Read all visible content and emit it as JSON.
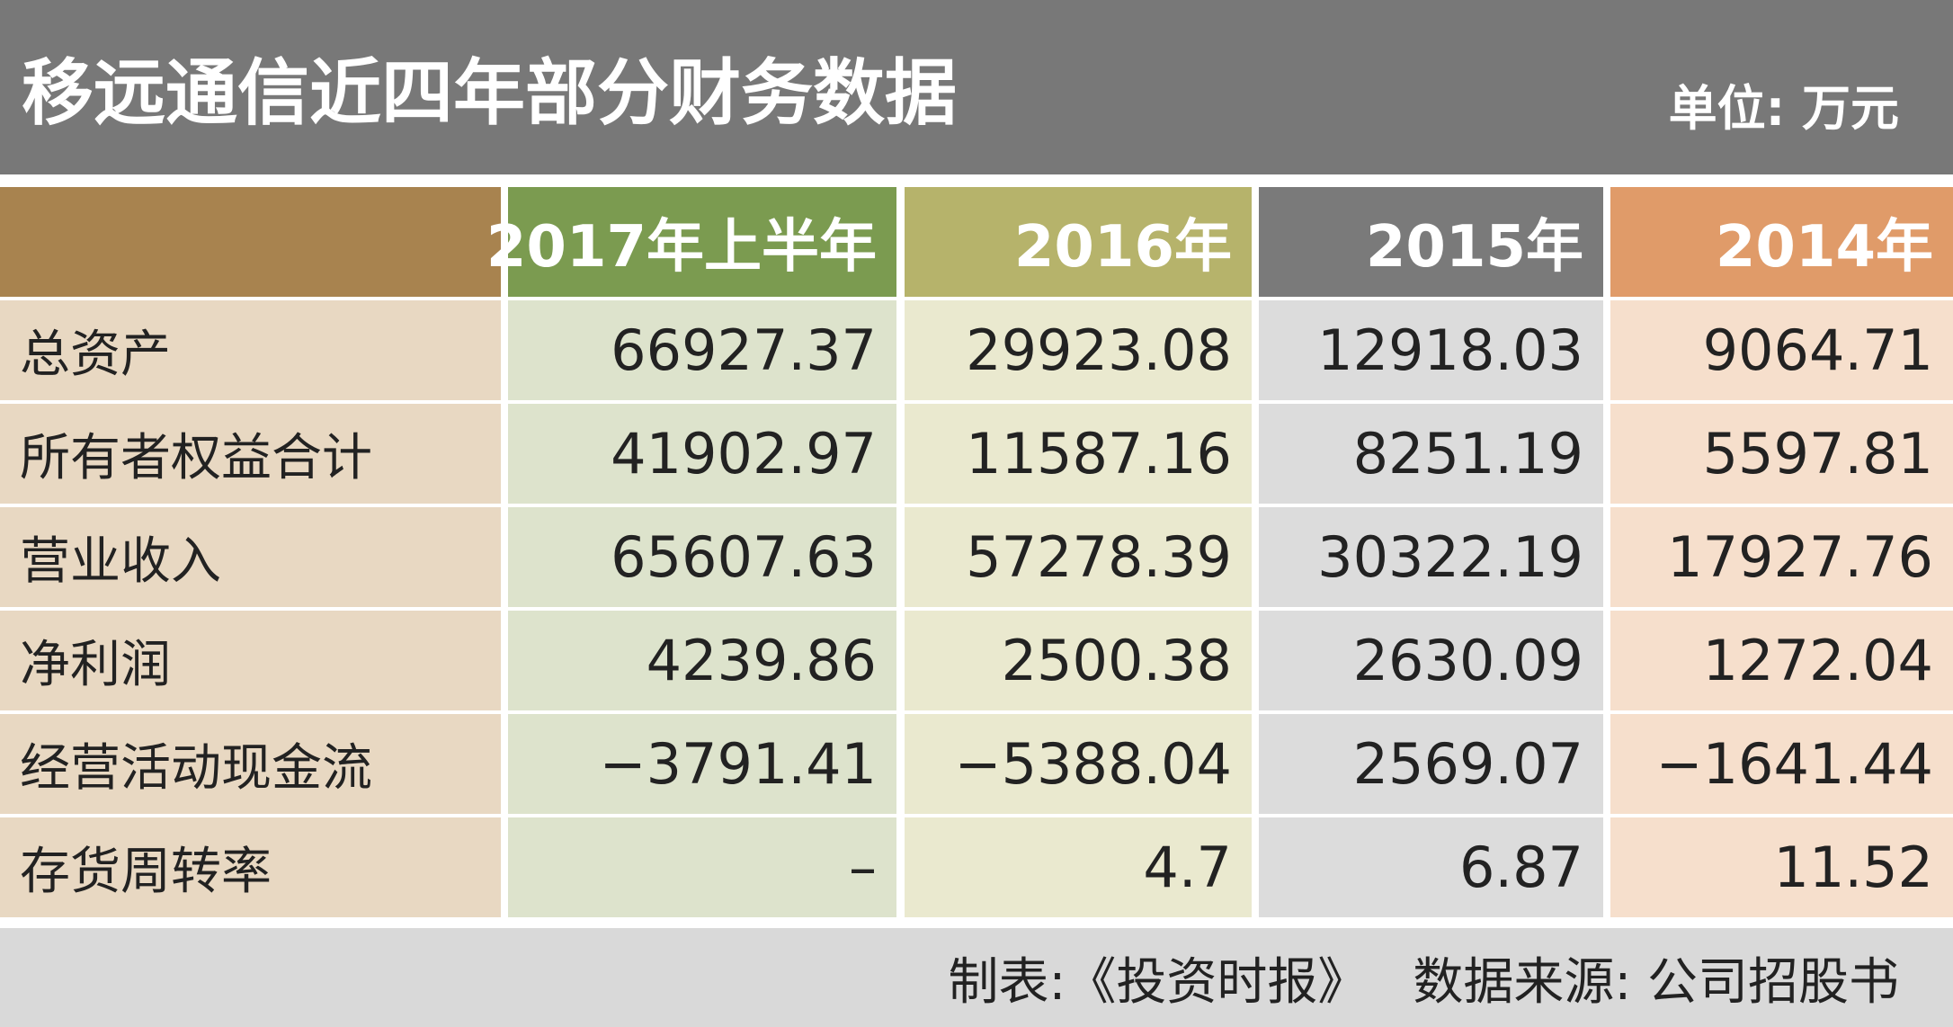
{
  "header": {
    "title": "移远通信近四年部分财务数据",
    "unit": "单位: 万元"
  },
  "table": {
    "columns": [
      "2017年上半年",
      "2016年",
      "2015年",
      "2014年"
    ],
    "rows": [
      {
        "label": "总资产",
        "values": [
          "66927.37",
          "29923.08",
          "12918.03",
          "9064.71"
        ]
      },
      {
        "label": "所有者权益合计",
        "values": [
          "41902.97",
          "11587.16",
          "8251.19",
          "5597.81"
        ]
      },
      {
        "label": "营业收入",
        "values": [
          "65607.63",
          "57278.39",
          "30322.19",
          "17927.76"
        ]
      },
      {
        "label": "净利润",
        "values": [
          "4239.86",
          "2500.38",
          "2630.09",
          "1272.04"
        ]
      },
      {
        "label": "经营活动现金流",
        "values": [
          "−3791.41",
          "−5388.04",
          "2569.07",
          "−1641.44"
        ]
      },
      {
        "label": "存货周转率",
        "values": [
          "–",
          "4.7",
          "6.87",
          "11.52"
        ]
      }
    ]
  },
  "footer": {
    "credit": "制表:《投资时报》",
    "source": "数据来源: 公司招股书"
  }
}
